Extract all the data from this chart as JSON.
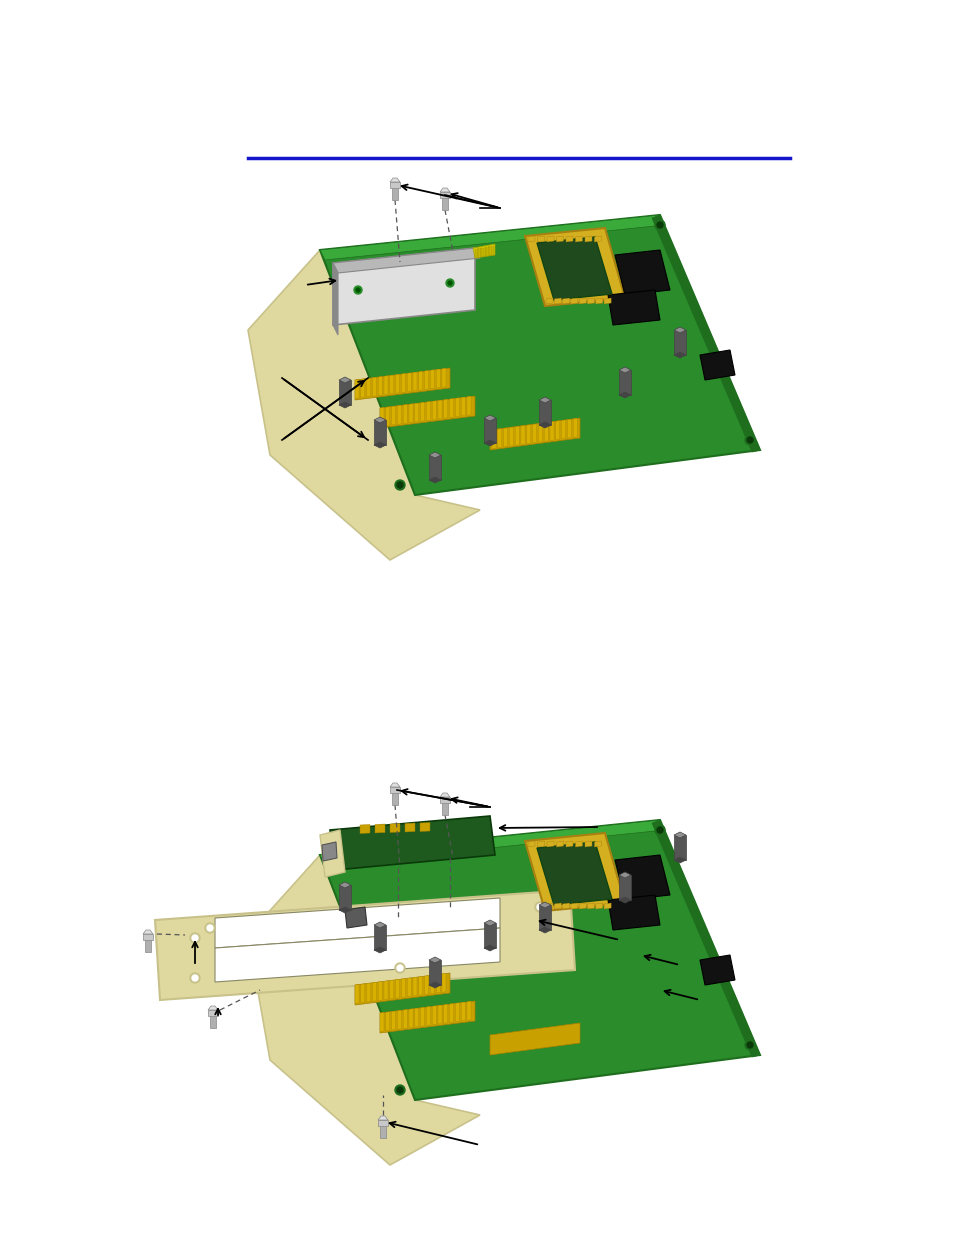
{
  "bg_color": "#ffffff",
  "line_color": "#1515cc",
  "fig_width": 9.54,
  "fig_height": 12.35,
  "board_green": "#2a8c2a",
  "board_green_dark": "#1e6e1e",
  "board_green_light": "#3aaa3a",
  "cream": "#dfd9a0",
  "cream_dark": "#c8c28a",
  "silver": "#b8b8b8",
  "silver_dark": "#888888",
  "silver_light": "#e0e0e0",
  "chip_yellow": "#d4b020",
  "chip_yellow_dark": "#a88010",
  "chip_center": "#1e4a1e",
  "black_chip": "#111111",
  "dark_gray": "#444444",
  "standoff_top": "#909090",
  "standoff_side": "#555555",
  "gold_strip": "#c8a000",
  "gold_strip2": "#a88000",
  "white": "#ffffff",
  "annotation": "#000000",
  "screw_body": "#b0b0b0",
  "screw_head": "#c8c8c8",
  "small_board_green": "#1e6e1e",
  "small_board_face": "#c8b860"
}
